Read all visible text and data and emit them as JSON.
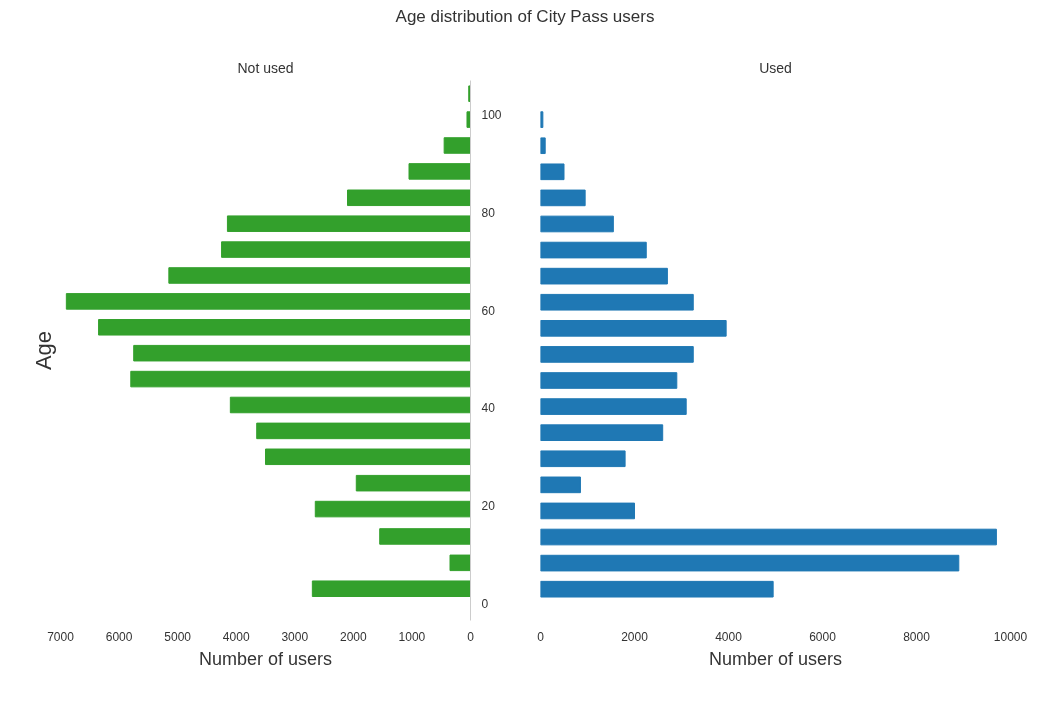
{
  "chart_data": [
    {
      "type": "bar",
      "orientation": "horizontal",
      "title": "Age distribution of City Pass users",
      "subtitle": "Not used",
      "xlabel": "Number of users",
      "ylabel": "Age",
      "x": [
        3.0,
        8.3,
        13.7,
        19.3,
        24.6,
        30.0,
        35.3,
        40.6,
        45.9,
        51.2,
        56.5,
        61.8,
        67.1,
        72.4,
        77.7,
        83.0,
        88.4,
        93.7,
        99.0,
        104.3
      ],
      "series": [
        {
          "color": "#33a02c",
          "values": [
            2700,
            350,
            1550,
            2650,
            1950,
            3500,
            3650,
            4100,
            5800,
            5750,
            6350,
            6900,
            5150,
            4250,
            4150,
            2100,
            1050,
            450,
            60,
            30
          ]
        }
      ],
      "xlim": [
        7000,
        0
      ],
      "xticks": [
        7000,
        6000,
        5000,
        4000,
        3000,
        2000,
        1000,
        0
      ],
      "ylim": [
        -3.5,
        107
      ],
      "yticks": [
        0,
        20,
        40,
        60,
        80,
        100
      ],
      "grid": false
    },
    {
      "type": "bar",
      "orientation": "horizontal",
      "subtitle": "Used",
      "xlabel": "Number of users",
      "categories": [
        null,
        null,
        null,
        null,
        null,
        null,
        null,
        null,
        null,
        null,
        null,
        null,
        null,
        null,
        null,
        null,
        null,
        null,
        null
      ],
      "series": [
        {
          "color": "#1f78b4",
          "values": [
            50,
            100,
            500,
            950,
            1550,
            2250,
            2700,
            3250,
            3950,
            3250,
            2900,
            3100,
            2600,
            1800,
            850,
            2000,
            9700,
            8900,
            4950
          ]
        }
      ],
      "xlim": [
        0,
        10000
      ],
      "xticks": [
        0,
        2000,
        4000,
        6000,
        8000,
        10000
      ],
      "tick_labels": "x",
      "grid": false
    }
  ]
}
